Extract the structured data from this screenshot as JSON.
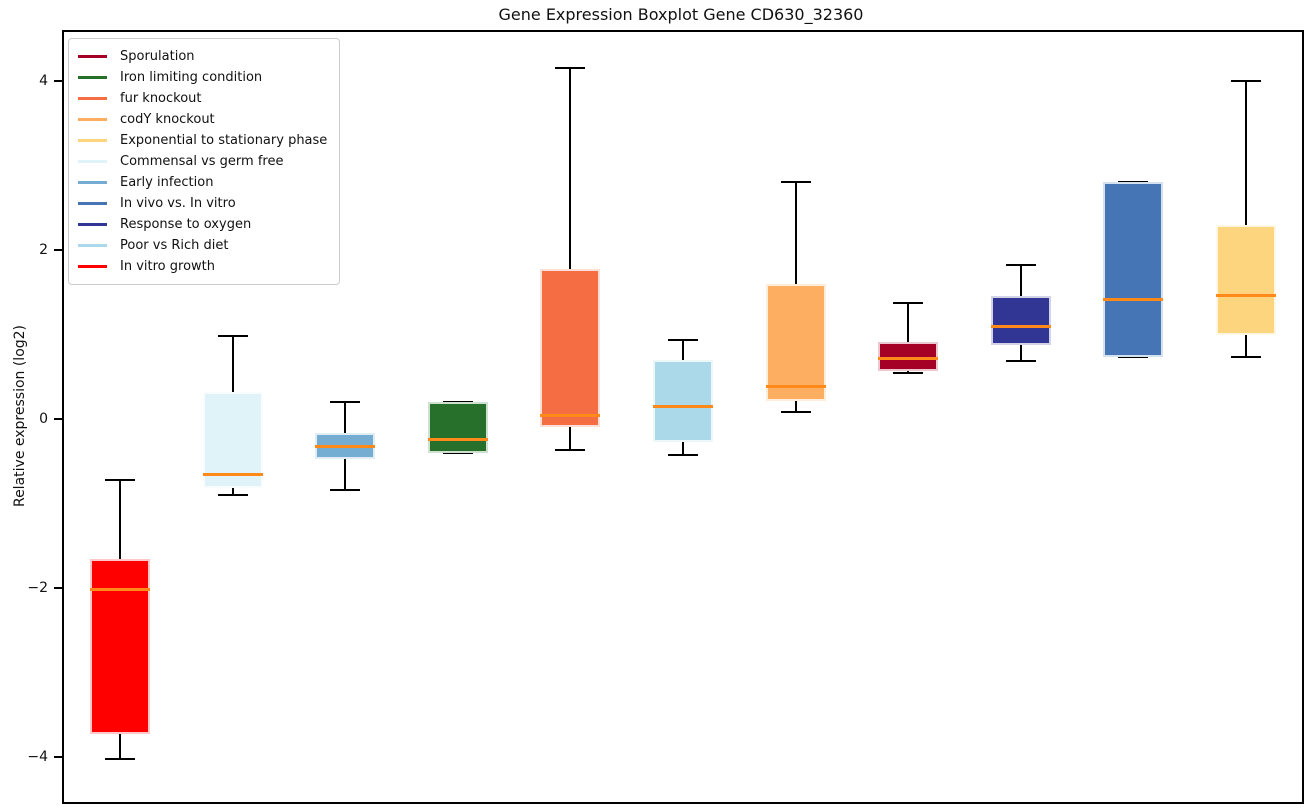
{
  "chart_data": {
    "type": "boxplot",
    "title": "Gene Expression Boxplot Gene CD630_32360",
    "ylabel": "Relative expression (log2)",
    "xlabel": "",
    "yticks": [
      4,
      2,
      0,
      -2,
      -4
    ],
    "ylim": [
      -4.51,
      4.6
    ],
    "grid": false,
    "legend_position": "upper-left",
    "median_color": "#ff8a1a",
    "whisker_color": "#000000",
    "legend": [
      {
        "label": "Sporulation",
        "color": "#a50026"
      },
      {
        "label": "Iron limiting condition",
        "color": "#27702b"
      },
      {
        "label": "fur knockout",
        "color": "#f46d43"
      },
      {
        "label": "codY knockout",
        "color": "#fdae61"
      },
      {
        "label": "Exponential to stationary phase",
        "color": "#fdd57e"
      },
      {
        "label": "Commensal vs germ free",
        "color": "#e0f3f8"
      },
      {
        "label": "Early infection",
        "color": "#74add1"
      },
      {
        "label": "In vivo vs. In vitro",
        "color": "#4575b4"
      },
      {
        "label": "Response to oxygen",
        "color": "#313695"
      },
      {
        "label": "Poor vs Rich diet",
        "color": "#abd9e9"
      },
      {
        "label": "In vitro growth",
        "color": "#ff0000"
      }
    ],
    "boxes": [
      {
        "label": "In vitro growth",
        "color": "#ff0000",
        "whisker_low": -4.0,
        "q1": -3.7,
        "median": -2.0,
        "q3": -1.63,
        "whisker_high": -0.7
      },
      {
        "label": "Commensal vs germ free",
        "color": "#e0f3f8",
        "whisker_low": -0.88,
        "q1": -0.79,
        "median": -0.63,
        "q3": 0.34,
        "whisker_high": 1.0
      },
      {
        "label": "Early infection",
        "color": "#74add1",
        "whisker_low": -0.82,
        "q1": -0.45,
        "median": -0.3,
        "q3": -0.15,
        "whisker_high": 0.22
      },
      {
        "label": "Iron limiting condition",
        "color": "#27702b",
        "whisker_low": -0.38,
        "q1": -0.38,
        "median": -0.22,
        "q3": 0.22,
        "whisker_high": 0.22
      },
      {
        "label": "fur knockout",
        "color": "#f46d43",
        "whisker_low": -0.35,
        "q1": -0.07,
        "median": 0.06,
        "q3": 1.8,
        "whisker_high": 4.17
      },
      {
        "label": "Poor vs Rich diet",
        "color": "#abd9e9",
        "whisker_low": -0.41,
        "q1": -0.25,
        "median": 0.17,
        "q3": 0.72,
        "whisker_high": 0.96
      },
      {
        "label": "codY knockout",
        "color": "#fdae61",
        "whisker_low": 0.11,
        "q1": 0.24,
        "median": 0.41,
        "q3": 1.62,
        "whisker_high": 2.82
      },
      {
        "label": "Sporulation",
        "color": "#a50026",
        "whisker_low": 0.56,
        "q1": 0.59,
        "median": 0.74,
        "q3": 0.93,
        "whisker_high": 1.39
      },
      {
        "label": "Response to oxygen",
        "color": "#313695",
        "whisker_low": 0.71,
        "q1": 0.9,
        "median": 1.11,
        "q3": 1.48,
        "whisker_high": 1.84
      },
      {
        "label": "In vivo vs. In vitro",
        "color": "#4575b4",
        "whisker_low": 0.76,
        "q1": 0.76,
        "median": 1.44,
        "q3": 2.83,
        "whisker_high": 2.83
      },
      {
        "label": "Exponential to stationary phase",
        "color": "#fdd57e",
        "whisker_low": 0.75,
        "q1": 1.02,
        "median": 1.48,
        "q3": 2.32,
        "whisker_high": 4.02
      }
    ]
  }
}
